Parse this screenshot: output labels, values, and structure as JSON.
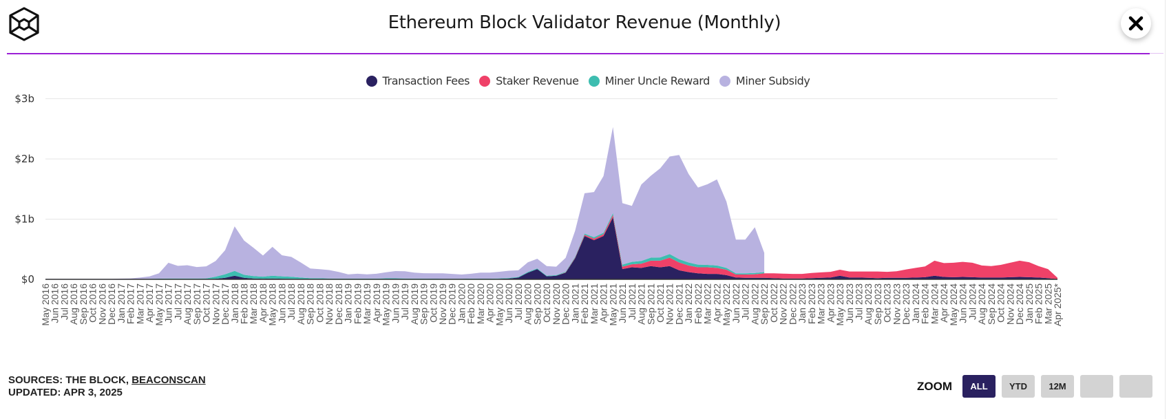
{
  "header": {
    "logo": "the-block-cube-logo",
    "title": "Ethereum Block Validator Revenue (Monthly)",
    "close_icon": "close-x-icon"
  },
  "legend": [
    {
      "name": "Transaction Fees",
      "color": "#2a2160"
    },
    {
      "name": "Staker Revenue",
      "color": "#ef4168"
    },
    {
      "name": "Miner Uncle Reward",
      "color": "#3dbdb0"
    },
    {
      "name": "Miner Subsidy",
      "color": "#b8b2e0"
    }
  ],
  "footer": {
    "sources_prefix": "SOURCES: THE BLOCK, ",
    "sources_link": "BEACONSCAN",
    "updated": "UPDATED: APR 3, 2025"
  },
  "zoom": {
    "label": "ZOOM",
    "buttons": [
      {
        "label": "ALL",
        "active": true
      },
      {
        "label": "YTD",
        "active": false
      },
      {
        "label": "12M",
        "active": false
      },
      {
        "label": "",
        "active": false
      },
      {
        "label": "",
        "active": false
      }
    ]
  },
  "chart_data": {
    "type": "area",
    "stacked": true,
    "title": "Ethereum Block Validator Revenue (Monthly)",
    "xlabel": "",
    "ylabel": "",
    "unit": "USD millions",
    "ylim": [
      0,
      3000
    ],
    "yticks": [
      {
        "value": 0,
        "label": "$0"
      },
      {
        "value": 1000,
        "label": "$1b"
      },
      {
        "value": 2000,
        "label": "$2b"
      },
      {
        "value": 3000,
        "label": "$3b"
      }
    ],
    "grid": true,
    "legend_position": "top-center",
    "categories": [
      "May 2016",
      "Jun 2016",
      "Jul 2016",
      "Aug 2016",
      "Sep 2016",
      "Oct 2016",
      "Nov 2016",
      "Dec 2016",
      "Jan 2017",
      "Feb 2017",
      "Mar 2017",
      "Apr 2017",
      "May 2017",
      "Jun 2017",
      "Jul 2017",
      "Aug 2017",
      "Sep 2017",
      "Oct 2017",
      "Nov 2017",
      "Dec 2017",
      "Jan 2018",
      "Feb 2018",
      "Mar 2018",
      "Apr 2018",
      "May 2018",
      "Jun 2018",
      "Jul 2018",
      "Aug 2018",
      "Sep 2018",
      "Oct 2018",
      "Nov 2018",
      "Dec 2018",
      "Jan 2019",
      "Feb 2019",
      "Mar 2019",
      "Apr 2019",
      "May 2019",
      "Jun 2019",
      "Jul 2019",
      "Aug 2019",
      "Sep 2019",
      "Oct 2019",
      "Nov 2019",
      "Dec 2019",
      "Jan 2020",
      "Feb 2020",
      "Mar 2020",
      "Apr 2020",
      "May 2020",
      "Jun 2020",
      "Jul 2020",
      "Aug 2020",
      "Sep 2020",
      "Oct 2020",
      "Nov 2020",
      "Dec 2020",
      "Jan 2021",
      "Feb 2021",
      "Mar 2021",
      "Apr 2021",
      "May 2021",
      "Jun 2021",
      "Jul 2021",
      "Aug 2021",
      "Sep 2021",
      "Oct 2021",
      "Nov 2021",
      "Dec 2021",
      "Jan 2022",
      "Feb 2022",
      "Mar 2022",
      "Apr 2022",
      "May 2022",
      "Jun 2022",
      "Jul 2022",
      "Aug 2022",
      "Sep 2022",
      "Oct 2022",
      "Nov 2022",
      "Dec 2022",
      "Jan 2023",
      "Feb 2023",
      "Mar 2023",
      "Apr 2023",
      "May 2023",
      "Jun 2023",
      "Jul 2023",
      "Aug 2023",
      "Sep 2023",
      "Oct 2023",
      "Nov 2023",
      "Dec 2023",
      "Jan 2024",
      "Feb 2024",
      "Mar 2024",
      "Apr 2024",
      "May 2024",
      "Jun 2024",
      "Jul 2024",
      "Aug 2024",
      "Sep 2024",
      "Oct 2024",
      "Nov 2024",
      "Dec 2024",
      "Jan 2025",
      "Feb 2025",
      "Mar 2025",
      "Apr 2025*"
    ],
    "series": [
      {
        "name": "Transaction Fees",
        "color": "#2a2160",
        "values": [
          1,
          1,
          1,
          1,
          1,
          1,
          1,
          1,
          1,
          1,
          1,
          2,
          3,
          5,
          4,
          4,
          4,
          4,
          10,
          25,
          60,
          25,
          15,
          10,
          15,
          10,
          8,
          5,
          3,
          3,
          2,
          2,
          2,
          2,
          2,
          3,
          5,
          5,
          4,
          3,
          3,
          3,
          2,
          2,
          2,
          3,
          3,
          3,
          8,
          15,
          30,
          110,
          170,
          50,
          60,
          110,
          350,
          720,
          650,
          720,
          1030,
          170,
          200,
          190,
          220,
          200,
          220,
          150,
          120,
          100,
          90,
          90,
          70,
          30,
          25,
          25,
          25,
          20,
          15,
          15,
          15,
          20,
          25,
          30,
          60,
          30,
          30,
          25,
          20,
          25,
          25,
          25,
          30,
          35,
          60,
          40,
          35,
          40,
          35,
          30,
          30,
          30,
          35,
          40,
          35,
          30,
          20,
          5
        ]
      },
      {
        "name": "Staker Revenue",
        "color": "#ef4168",
        "values": [
          0,
          0,
          0,
          0,
          0,
          0,
          0,
          0,
          0,
          0,
          0,
          0,
          0,
          0,
          0,
          0,
          0,
          0,
          0,
          0,
          0,
          0,
          0,
          0,
          0,
          0,
          0,
          0,
          0,
          0,
          0,
          0,
          0,
          0,
          0,
          0,
          0,
          0,
          0,
          0,
          0,
          0,
          0,
          0,
          0,
          0,
          0,
          0,
          0,
          0,
          0,
          0,
          0,
          0,
          0,
          5,
          10,
          20,
          25,
          30,
          40,
          40,
          50,
          70,
          90,
          110,
          140,
          130,
          110,
          100,
          110,
          100,
          90,
          50,
          55,
          60,
          75,
          80,
          80,
          75,
          75,
          85,
          90,
          95,
          100,
          100,
          100,
          105,
          110,
          100,
          110,
          140,
          160,
          180,
          250,
          230,
          240,
          250,
          240,
          200,
          190,
          210,
          240,
          270,
          250,
          190,
          150,
          20
        ]
      },
      {
        "name": "Miner Uncle Reward",
        "color": "#3dbdb0",
        "values": [
          2,
          2,
          2,
          2,
          2,
          2,
          2,
          2,
          3,
          3,
          4,
          6,
          8,
          10,
          10,
          10,
          10,
          12,
          35,
          60,
          80,
          50,
          40,
          35,
          45,
          40,
          35,
          25,
          18,
          15,
          12,
          10,
          10,
          10,
          10,
          10,
          12,
          12,
          10,
          9,
          9,
          8,
          8,
          8,
          8,
          9,
          8,
          8,
          8,
          8,
          10,
          12,
          12,
          10,
          10,
          12,
          15,
          20,
          25,
          25,
          30,
          35,
          40,
          45,
          50,
          55,
          60,
          55,
          50,
          45,
          40,
          40,
          30,
          20,
          20,
          20,
          20,
          0,
          0,
          0,
          0,
          0,
          0,
          0,
          0,
          0,
          0,
          0,
          0,
          0,
          0,
          0,
          0,
          0,
          0,
          0,
          0,
          0,
          0,
          0,
          0,
          0,
          0,
          0,
          0,
          0,
          0,
          0
        ]
      },
      {
        "name": "Miner Subsidy",
        "color": "#b8b2e0",
        "values": [
          5,
          5,
          5,
          5,
          5,
          6,
          6,
          6,
          8,
          12,
          25,
          40,
          90,
          260,
          210,
          220,
          190,
          200,
          260,
          400,
          740,
          570,
          470,
          350,
          480,
          350,
          330,
          250,
          160,
          150,
          140,
          110,
          70,
          80,
          70,
          80,
          100,
          120,
          120,
          100,
          90,
          90,
          90,
          80,
          70,
          80,
          100,
          100,
          110,
          120,
          110,
          160,
          160,
          160,
          140,
          230,
          430,
          670,
          750,
          940,
          1430,
          1020,
          930,
          1270,
          1360,
          1480,
          1620,
          1730,
          1470,
          1280,
          1340,
          1430,
          1100,
          560,
          560,
          760,
          320,
          0,
          0,
          0,
          0,
          0,
          0,
          0,
          0,
          0,
          0,
          0,
          0,
          0,
          0,
          0,
          0,
          0,
          0,
          0,
          0,
          0,
          0,
          0,
          0,
          0,
          0,
          0,
          0,
          0,
          0,
          0
        ]
      }
    ]
  }
}
